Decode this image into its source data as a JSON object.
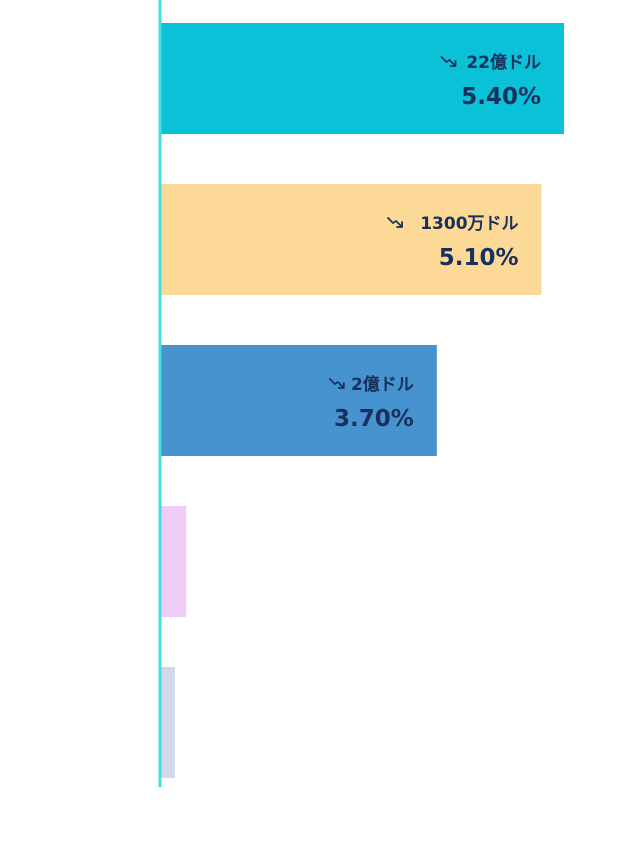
{
  "chart_data": {
    "type": "bar",
    "orientation": "horizontal",
    "title": "",
    "xlabel": "",
    "ylabel": "",
    "xlim": [
      0,
      5.4
    ],
    "grid": false,
    "bars": [
      {
        "value": 5.4,
        "amount": "22億ドル",
        "percent": "5.40%",
        "trend": "down",
        "color": "#0bc1d8"
      },
      {
        "value": 5.1,
        "amount": "1300万ドル",
        "percent": "5.10%",
        "trend": "down",
        "color": "#fdd997"
      },
      {
        "value": 3.7,
        "amount": "2億ドル",
        "percent": "3.70%",
        "trend": "down",
        "color": "#4693cf"
      },
      {
        "value": 0.35,
        "amount": "",
        "percent": "",
        "trend": "",
        "color": "#efcdf7"
      },
      {
        "value": 0.2,
        "amount": "",
        "percent": "",
        "trend": "",
        "color": "#d3d9e9"
      }
    ],
    "axis_color": "#42dfe1",
    "label_color": "#17305c",
    "trend_icon": "trending-down-icon"
  }
}
